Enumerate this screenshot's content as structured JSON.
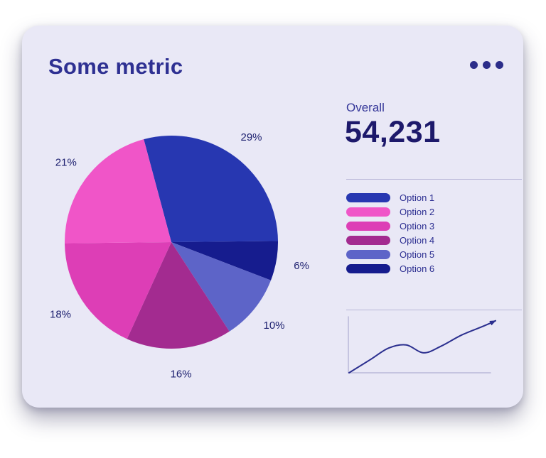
{
  "card": {
    "title": "Some metric",
    "background_color": "#e9e8f6"
  },
  "overall": {
    "label": "Overall",
    "value": "54,231"
  },
  "chart_data": {
    "type": "pie",
    "title": "Some metric",
    "overall_label": "Overall",
    "overall_value": "54,231",
    "label_suffix": "%",
    "legend_position": "right",
    "start_angle_deg": -15,
    "draw_order": [
      0,
      5,
      4,
      3,
      2,
      1
    ],
    "slices": [
      {
        "label": "Option 1",
        "value": 29,
        "color": "#2737b1"
      },
      {
        "label": "Option 2",
        "value": 21,
        "color": "#f055c8"
      },
      {
        "label": "Option 3",
        "value": 18,
        "color": "#dd3eb6"
      },
      {
        "label": "Option 4",
        "value": 16,
        "color": "#a32b90"
      },
      {
        "label": "Option 5",
        "value": 10,
        "color": "#5d64c8"
      },
      {
        "label": "Option 6",
        "value": 6,
        "color": "#161c8e"
      }
    ]
  },
  "sparkline": {
    "type": "line",
    "color": "#2b2f8f",
    "axis_color": "#b9b7d8",
    "arrow_end": true,
    "x": [
      0,
      15,
      27,
      39,
      51,
      63,
      77,
      92,
      100
    ],
    "y": [
      0,
      26,
      47,
      53,
      38,
      51,
      72,
      89,
      99
    ]
  }
}
